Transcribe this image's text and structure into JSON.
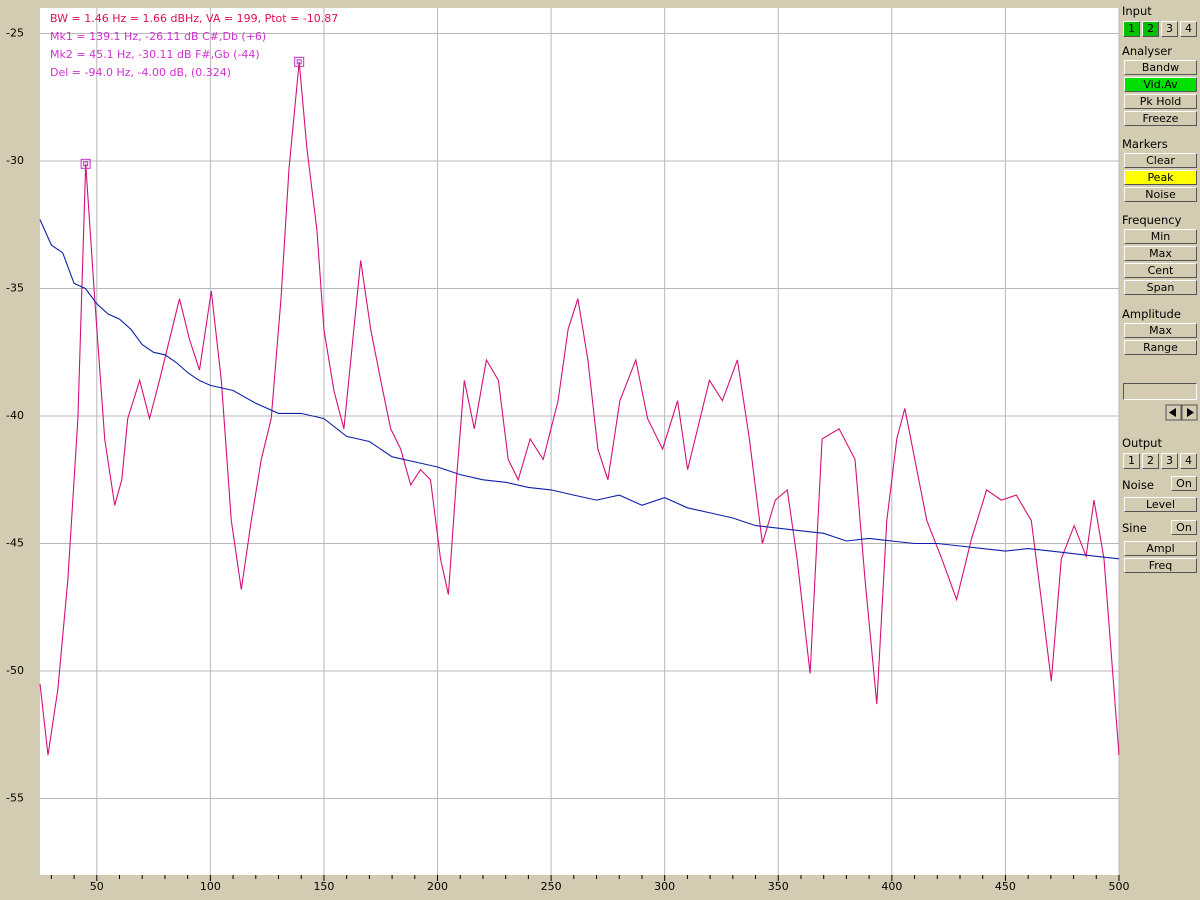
{
  "chart_data": {
    "type": "line",
    "header": "BW = 1.46 Hz =  1.66 dBHz, VA = 199, Ptot = -10.87",
    "marker_lines": [
      "Mk1 =   139.1 Hz,   -26.11 dB  C#,Db (+6)",
      "Mk2 =     45.1 Hz,   -30.11 dB  F#,Gb (-44)",
      "Del =    -94.0 Hz,    -4.00 dB, (0.324)"
    ],
    "xlim": [
      25,
      500
    ],
    "ylim": [
      -58,
      -24
    ],
    "xticks": [
      50,
      100,
      150,
      200,
      250,
      300,
      350,
      400,
      450,
      500
    ],
    "xminorticks": [
      30,
      40,
      60,
      70,
      80,
      90,
      110,
      120,
      130,
      140,
      160,
      170,
      180,
      190,
      210,
      220,
      230,
      240,
      260,
      270,
      280,
      290,
      310,
      320,
      330,
      340,
      360,
      370,
      380,
      390,
      410,
      420,
      430,
      440,
      460,
      470,
      480,
      490
    ],
    "yticks": [
      -25,
      -30,
      -35,
      -40,
      -45,
      -50,
      -55
    ],
    "grid": true,
    "markers": [
      {
        "x": 139.1,
        "y": -26.11,
        "color": "#c030c0"
      },
      {
        "x": 45.1,
        "y": -30.11,
        "color": "#c030c0"
      }
    ],
    "series": [
      {
        "color": "#d4107a",
        "x": [
          25,
          28.5,
          32.9,
          37.3,
          41.7,
          45.1,
          49.1,
          53.5,
          57.9,
          61,
          63.6,
          68.9,
          73.2,
          77.6,
          82,
          86.4,
          90.8,
          95.2,
          100.4,
          104.8,
          109.2,
          113.6,
          118,
          122.4,
          126.8,
          131.1,
          134.6,
          139.1,
          142.5,
          146.9,
          150,
          154.4,
          158.8,
          161.8,
          166.2,
          170.6,
          175,
          179.4,
          183.8,
          188.2,
          192.5,
          196.9,
          201.3,
          204.8,
          208.3,
          211.8,
          216.2,
          221.5,
          226.8,
          231.1,
          235.5,
          240.8,
          246.5,
          253.1,
          257.5,
          261.8,
          266.2,
          270.6,
          275,
          280.3,
          287.3,
          292.5,
          299.1,
          305.7,
          310.1,
          314.5,
          319.7,
          325.4,
          332,
          337.3,
          343,
          348.7,
          354,
          358.3,
          364,
          369.3,
          376.8,
          383.8,
          388.2,
          393.4,
          397.8,
          402.2,
          405.7,
          410.1,
          415.4,
          422,
          428.5,
          435.1,
          441.7,
          448.2,
          454.8,
          461.4,
          465.8,
          470.2,
          474.6,
          480.3,
          485.5,
          489,
          493.4,
          500
        ],
        "values": [
          -50.5,
          -53.3,
          -50.7,
          -46.4,
          -40.1,
          -30.11,
          -35.4,
          -40.9,
          -43.5,
          -42.5,
          -40.1,
          -38.6,
          -40.1,
          -38.6,
          -37,
          -35.4,
          -37,
          -38.2,
          -35.1,
          -38.6,
          -44.1,
          -46.8,
          -44.1,
          -41.7,
          -40.1,
          -35.4,
          -30.3,
          -26.11,
          -29.5,
          -32.7,
          -36.6,
          -39,
          -40.5,
          -37.8,
          -33.9,
          -36.6,
          -38.6,
          -40.5,
          -41.3,
          -42.7,
          -42.1,
          -42.5,
          -45.6,
          -47,
          -42.5,
          -38.6,
          -40.5,
          -37.8,
          -38.6,
          -41.7,
          -42.5,
          -40.9,
          -41.7,
          -39.4,
          -36.6,
          -35.4,
          -37.8,
          -41.3,
          -42.5,
          -39.4,
          -37.8,
          -40.1,
          -41.3,
          -39.4,
          -42.1,
          -40.5,
          -38.6,
          -39.4,
          -37.8,
          -40.9,
          -45,
          -43.3,
          -42.9,
          -45.6,
          -50.1,
          -40.9,
          -40.5,
          -41.7,
          -46.4,
          -51.3,
          -44.1,
          -40.9,
          -39.7,
          -41.7,
          -44.1,
          -45.6,
          -47.2,
          -44.8,
          -42.9,
          -43.3,
          -43.1,
          -44.1,
          -47.2,
          -50.4,
          -45.6,
          -44.3,
          -45.5,
          -43.3,
          -45.6,
          -53.3
        ]
      },
      {
        "color": "#1020a8",
        "x": [
          25,
          30,
          35,
          40,
          45,
          50,
          55,
          60,
          65,
          70,
          75,
          80,
          85,
          90,
          95,
          100,
          110,
          120,
          130,
          140,
          150,
          160,
          170,
          180,
          190,
          200,
          210,
          220,
          230,
          240,
          250,
          260,
          270,
          280,
          290,
          300,
          310,
          320,
          330,
          340,
          350,
          360,
          370,
          380,
          390,
          400,
          410,
          420,
          430,
          440,
          450,
          460,
          470,
          480,
          490,
          500
        ],
        "values": [
          -32.3,
          -33.3,
          -33.6,
          -34.8,
          -35,
          -35.6,
          -36,
          -36.2,
          -36.6,
          -37.2,
          -37.5,
          -37.6,
          -37.9,
          -38.3,
          -38.6,
          -38.8,
          -39,
          -39.5,
          -39.9,
          -39.9,
          -40.1,
          -40.8,
          -41,
          -41.6,
          -41.8,
          -42,
          -42.3,
          -42.5,
          -42.6,
          -42.8,
          -42.9,
          -43.1,
          -43.3,
          -43.1,
          -43.5,
          -43.2,
          -43.6,
          -43.8,
          -44,
          -44.3,
          -44.4,
          -44.5,
          -44.6,
          -44.9,
          -44.8,
          -44.9,
          -45,
          -45,
          -45.1,
          -45.2,
          -45.3,
          -45.2,
          -45.3,
          -45.4,
          -45.5,
          -45.6
        ]
      }
    ]
  },
  "panel": {
    "input": {
      "title": "Input",
      "buttons": [
        {
          "label": "1",
          "on": true
        },
        {
          "label": "2",
          "on": true
        },
        {
          "label": "3"
        },
        {
          "label": "4"
        }
      ]
    },
    "analyser": {
      "title": "Analyser",
      "buttons": [
        {
          "label": "Bandw"
        },
        {
          "label": "Vid.Av",
          "on": true,
          "color": "#00e000"
        },
        {
          "label": "Pk Hold"
        },
        {
          "label": "Freeze"
        }
      ]
    },
    "markers": {
      "title": "Markers",
      "buttons": [
        {
          "label": "Clear"
        },
        {
          "label": "Peak",
          "on": true,
          "color": "#ffff00"
        },
        {
          "label": "Noise"
        }
      ]
    },
    "frequency": {
      "title": "Frequency",
      "buttons": [
        {
          "label": "Min"
        },
        {
          "label": "Max"
        },
        {
          "label": "Cent"
        },
        {
          "label": "Span"
        }
      ]
    },
    "amplitude": {
      "title": "Amplitude",
      "buttons": [
        {
          "label": "Max"
        },
        {
          "label": "Range"
        }
      ]
    },
    "output": {
      "title": "Output",
      "buttons": [
        {
          "label": "1"
        },
        {
          "label": "2"
        },
        {
          "label": "3"
        },
        {
          "label": "4"
        }
      ]
    },
    "noise": {
      "title": "Noise",
      "toggle": "On",
      "buttons": [
        {
          "label": "Level"
        }
      ]
    },
    "sine": {
      "title": "Sine",
      "toggle": "On",
      "buttons": [
        {
          "label": "Ampl"
        },
        {
          "label": "Freq"
        }
      ]
    }
  }
}
